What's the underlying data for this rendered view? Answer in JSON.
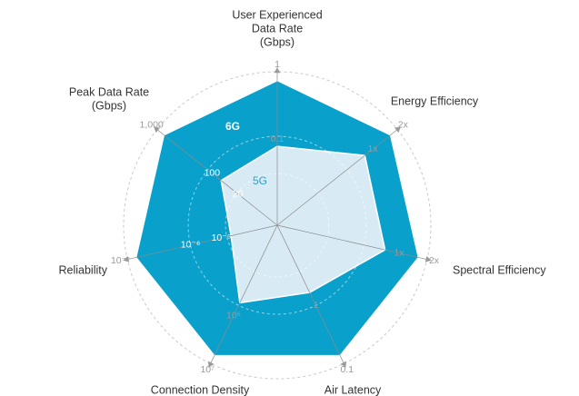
{
  "chart_data": {
    "type": "radar",
    "title": "",
    "axes": [
      {
        "label_lines": [
          "User Experienced",
          "Data Rate",
          "(Gbps)"
        ],
        "outer_tick": "1",
        "inner_tick": "0.1"
      },
      {
        "label_lines": [
          "Energy Efficiency"
        ],
        "outer_tick": "2x",
        "inner_tick": "1x"
      },
      {
        "label_lines": [
          "Spectral Efficiency"
        ],
        "outer_tick": "2x",
        "inner_tick": "1x"
      },
      {
        "label_lines": [
          "Air Latency"
        ],
        "outer_tick": "0.1",
        "inner_tick": "1"
      },
      {
        "label_lines": [
          "Connection Density"
        ],
        "outer_tick": "10⁷",
        "inner_tick": "10⁶"
      },
      {
        "label_lines": [
          "Reliability"
        ],
        "outer_tick": "10⁻⁷",
        "inner_tick": "10⁻⁵"
      },
      {
        "label_lines": [
          "Peak Data Rate",
          "(Gbps)"
        ],
        "outer_tick": "1,000",
        "inner_tick": "20"
      }
    ],
    "series": [
      {
        "name": "6G",
        "color": "#0aa0cc",
        "values": [
          1.0,
          1.0,
          1.0,
          1.0,
          1.0,
          1.0,
          1.0
        ]
      },
      {
        "name": "5G",
        "color": "#d8ebf5",
        "values": [
          0.55,
          0.78,
          0.77,
          0.52,
          0.6,
          0.33,
          0.5
        ]
      }
    ],
    "extra_ticks": [
      {
        "axis": 6,
        "label": "100"
      },
      {
        "axis": 5,
        "label": "10⁻⁶"
      }
    ],
    "grid": "dashed concentric rings",
    "legend": "none"
  }
}
